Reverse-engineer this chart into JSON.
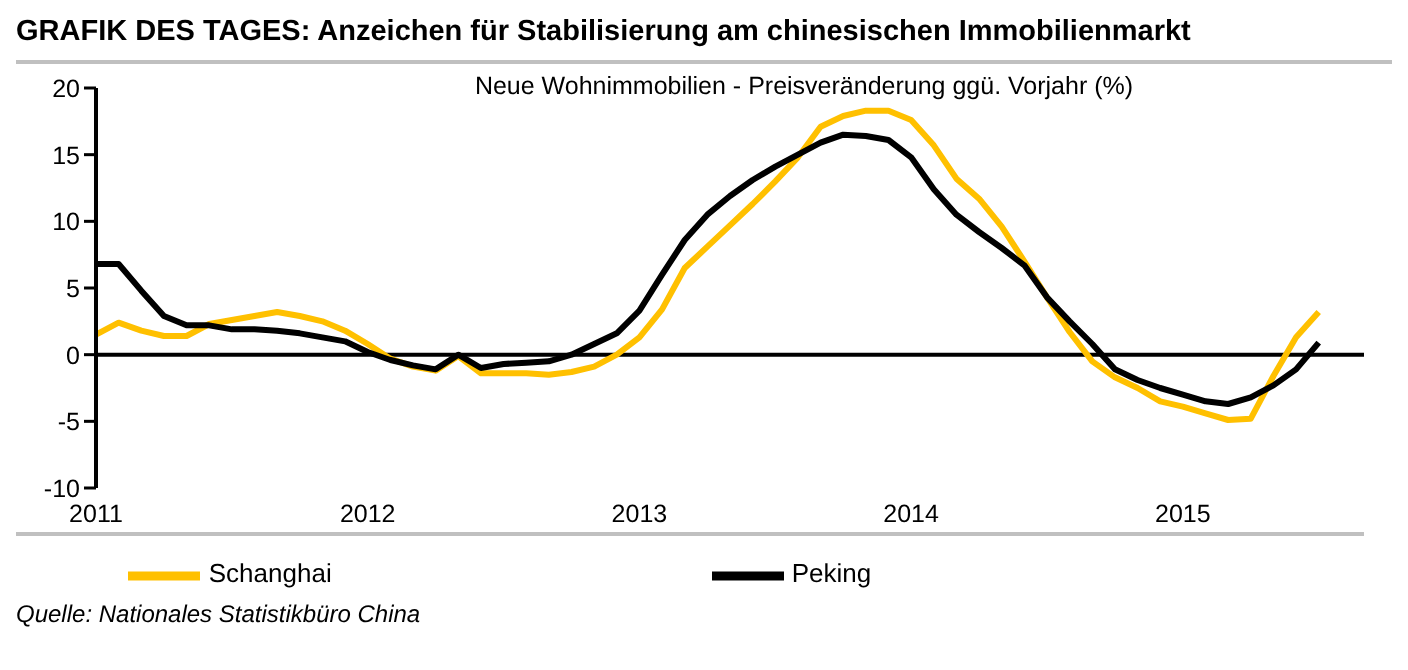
{
  "chart_data": {
    "type": "line",
    "title": "GRAFIK DES TAGES: Anzeichen für Stabilisierung am chinesischen Immobilienmarkt",
    "subtitle": "Neue Wohnimmobilien - Preisveränderung ggü. Vorjahr (%)",
    "x": [
      "2011-01",
      "2011-02",
      "2011-03",
      "2011-04",
      "2011-05",
      "2011-06",
      "2011-07",
      "2011-08",
      "2011-09",
      "2011-10",
      "2011-11",
      "2011-12",
      "2012-01",
      "2012-02",
      "2012-03",
      "2012-04",
      "2012-05",
      "2012-06",
      "2012-07",
      "2012-08",
      "2012-09",
      "2012-10",
      "2012-11",
      "2012-12",
      "2013-01",
      "2013-02",
      "2013-03",
      "2013-04",
      "2013-05",
      "2013-06",
      "2013-07",
      "2013-08",
      "2013-09",
      "2013-10",
      "2013-11",
      "2013-12",
      "2014-01",
      "2014-02",
      "2014-03",
      "2014-04",
      "2014-05",
      "2014-06",
      "2014-07",
      "2014-08",
      "2014-09",
      "2014-10",
      "2014-11",
      "2014-12",
      "2015-01",
      "2015-02",
      "2015-03",
      "2015-04",
      "2015-05",
      "2015-06",
      "2015-07"
    ],
    "series": [
      {
        "name": "Schanghai",
        "color": "#ffc000",
        "values": [
          1.5,
          2.4,
          1.8,
          1.4,
          1.4,
          2.3,
          2.6,
          2.9,
          3.2,
          2.9,
          2.5,
          1.8,
          0.8,
          -0.3,
          -0.9,
          -1.2,
          -0.1,
          -1.4,
          -1.4,
          -1.4,
          -1.5,
          -1.3,
          -0.9,
          0,
          1.3,
          3.4,
          6.5,
          8.1,
          9.7,
          11.3,
          13,
          14.8,
          17.1,
          17.9,
          18.3,
          18.3,
          17.6,
          15.7,
          13.2,
          11.7,
          9.6,
          7,
          4.3,
          1.7,
          -0.5,
          -1.7,
          -2.5,
          -3.5,
          -3.9,
          -4.4,
          -4.9,
          -4.8,
          -1.6,
          1.3,
          3.2
        ]
      },
      {
        "name": "Peking",
        "color": "#000000",
        "values": [
          6.8,
          6.8,
          4.8,
          2.9,
          2.2,
          2.2,
          1.9,
          1.9,
          1.8,
          1.6,
          1.3,
          1,
          0.2,
          -0.4,
          -0.8,
          -1.1,
          0,
          -1,
          -0.7,
          -0.6,
          -0.5,
          0,
          0.8,
          1.6,
          3.3,
          6,
          8.6,
          10.5,
          11.9,
          13.1,
          14.1,
          15,
          15.9,
          16.5,
          16.4,
          16.1,
          14.8,
          12.4,
          10.5,
          9.2,
          8,
          6.7,
          4.3,
          2.5,
          0.8,
          -1.1,
          -1.9,
          -2.5,
          -3,
          -3.5,
          -3.7,
          -3.2,
          -2.3,
          -1.1,
          0.9
        ]
      }
    ],
    "xlim": [
      "2011-01",
      "2015-09"
    ],
    "xticks": [
      "2011",
      "2012",
      "2013",
      "2014",
      "2015"
    ],
    "ylim": [
      -10,
      20
    ],
    "yticks": [
      -10,
      -5,
      0,
      5,
      10,
      15,
      20
    ],
    "ref_lines": [
      {
        "axis": "y",
        "value": 0,
        "color": "#000000"
      }
    ],
    "legend": "bottom",
    "marker": "none",
    "line_style": "solid",
    "annotations": [
      "Quelle: Nationales Statistikbüro China"
    ]
  }
}
